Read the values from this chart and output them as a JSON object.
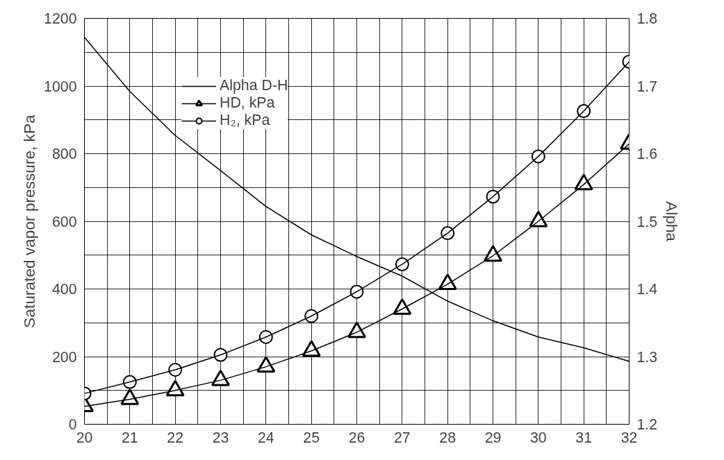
{
  "chart_data": {
    "type": "line",
    "ylabel": "Saturated vapor pressure, kPa",
    "y2label": "Alpha",
    "x": [
      20,
      21,
      22,
      23,
      24,
      25,
      26,
      27,
      28,
      29,
      30,
      31,
      32
    ],
    "series": [
      {
        "name": "Alpha D-H",
        "color": "#000000",
        "axis": "y2",
        "marker": "none",
        "values": [
          1.772,
          1.692,
          1.627,
          1.575,
          1.522,
          1.48,
          1.448,
          1.419,
          1.382,
          1.353,
          1.329,
          1.313,
          1.293
        ]
      },
      {
        "name": "HD, kPa",
        "color": "#000000",
        "marker": "triangle",
        "values": [
          53,
          74,
          100,
          130,
          170,
          217,
          272,
          341,
          414,
          498,
          600,
          709,
          829
        ]
      },
      {
        "name": "H₂, kPa",
        "color": "#000000",
        "marker": "circle",
        "values": [
          91,
          125,
          161,
          205,
          258,
          320,
          392,
          473,
          565,
          673,
          792,
          926,
          1072
        ]
      }
    ],
    "xlim": [
      20,
      32
    ],
    "xticks": [
      20,
      {
        "value": 20.5,
        "label": null
      },
      21,
      {
        "value": 21.5,
        "label": null
      },
      22,
      {
        "value": 22.5,
        "label": null
      },
      23,
      {
        "value": 23.5,
        "label": null
      },
      24,
      {
        "value": 24.5,
        "label": null
      },
      25,
      {
        "value": 25.5,
        "label": null
      },
      26,
      {
        "value": 26.5,
        "label": null
      },
      27,
      {
        "value": 27.5,
        "label": null
      },
      28,
      {
        "value": 28.5,
        "label": null
      },
      29,
      {
        "value": 29.5,
        "label": null
      },
      30,
      {
        "value": 30.5,
        "label": null
      },
      31,
      {
        "value": 31.5,
        "label": null
      },
      32
    ],
    "ylim": [
      0,
      1200
    ],
    "yticks": [
      0,
      {
        "value": 100,
        "label": null
      },
      200,
      {
        "value": 300,
        "label": null
      },
      400,
      {
        "value": 500,
        "label": null
      },
      600,
      {
        "value": 700,
        "label": null
      },
      800,
      {
        "value": 900,
        "label": null
      },
      1000,
      {
        "value": 1100,
        "label": null
      },
      1200
    ],
    "y2lim": [
      1.2,
      1.8
    ],
    "y2ticks": [
      1.2,
      1.3,
      1.4,
      1.5,
      1.6,
      1.7,
      1.8
    ],
    "grid": true,
    "legend": "top left",
    "line_style": "solid"
  }
}
